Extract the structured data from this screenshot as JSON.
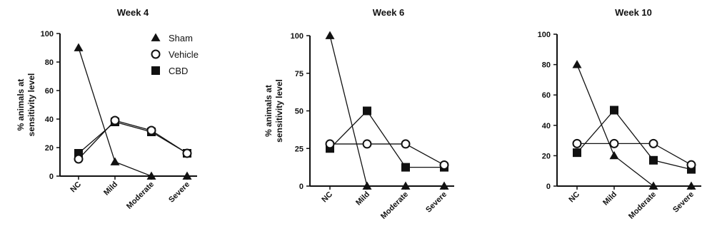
{
  "chart_data": [
    {
      "type": "line",
      "title": "Week 4",
      "ylabel": "% animals at sensitivity level",
      "ylabel_lines": [
        "% animals at",
        "sensitivity level"
      ],
      "categories": [
        "NC",
        "Mild",
        "Moderate",
        "Severe"
      ],
      "ylim": [
        0,
        100
      ],
      "yticks": [
        0,
        20,
        40,
        60,
        80,
        100
      ],
      "grid": false,
      "legend": "top-right",
      "series": [
        {
          "name": "Sham",
          "marker": "triangle",
          "values": [
            90,
            10,
            0,
            0
          ]
        },
        {
          "name": "Vehicle",
          "marker": "circle-open",
          "values": [
            12,
            39,
            32,
            16
          ]
        },
        {
          "name": "CBD",
          "marker": "square",
          "values": [
            16,
            38,
            31,
            16
          ]
        }
      ]
    },
    {
      "type": "line",
      "title": "Week 6",
      "ylabel": "% animals at sensitivity level",
      "ylabel_lines": [
        "% animals at",
        "sensitivity level"
      ],
      "categories": [
        "NC",
        "Mild",
        "Moderate",
        "Severe"
      ],
      "ylim": [
        0,
        100
      ],
      "yticks": [
        0,
        25,
        50,
        75,
        100
      ],
      "grid": false,
      "legend": "none",
      "series": [
        {
          "marker": "triangle",
          "values": [
            100,
            0,
            0,
            0
          ]
        },
        {
          "marker": "circle-open",
          "values": [
            28,
            28,
            28,
            14
          ]
        },
        {
          "marker": "square",
          "values": [
            25,
            50,
            12.5,
            12.5
          ]
        }
      ]
    },
    {
      "type": "line",
      "title": "Week 10",
      "ylabel": "",
      "categories": [
        "NC",
        "Mild",
        "Moderate",
        "Severe"
      ],
      "ylim": [
        0,
        100
      ],
      "yticks": [
        0,
        20,
        40,
        60,
        80,
        100
      ],
      "grid": false,
      "legend": "none",
      "series": [
        {
          "marker": "triangle",
          "values": [
            80,
            20,
            0,
            0
          ]
        },
        {
          "marker": "circle-open",
          "values": [
            28,
            28,
            28,
            14
          ]
        },
        {
          "marker": "square",
          "values": [
            22,
            50,
            17,
            11
          ]
        }
      ]
    }
  ]
}
